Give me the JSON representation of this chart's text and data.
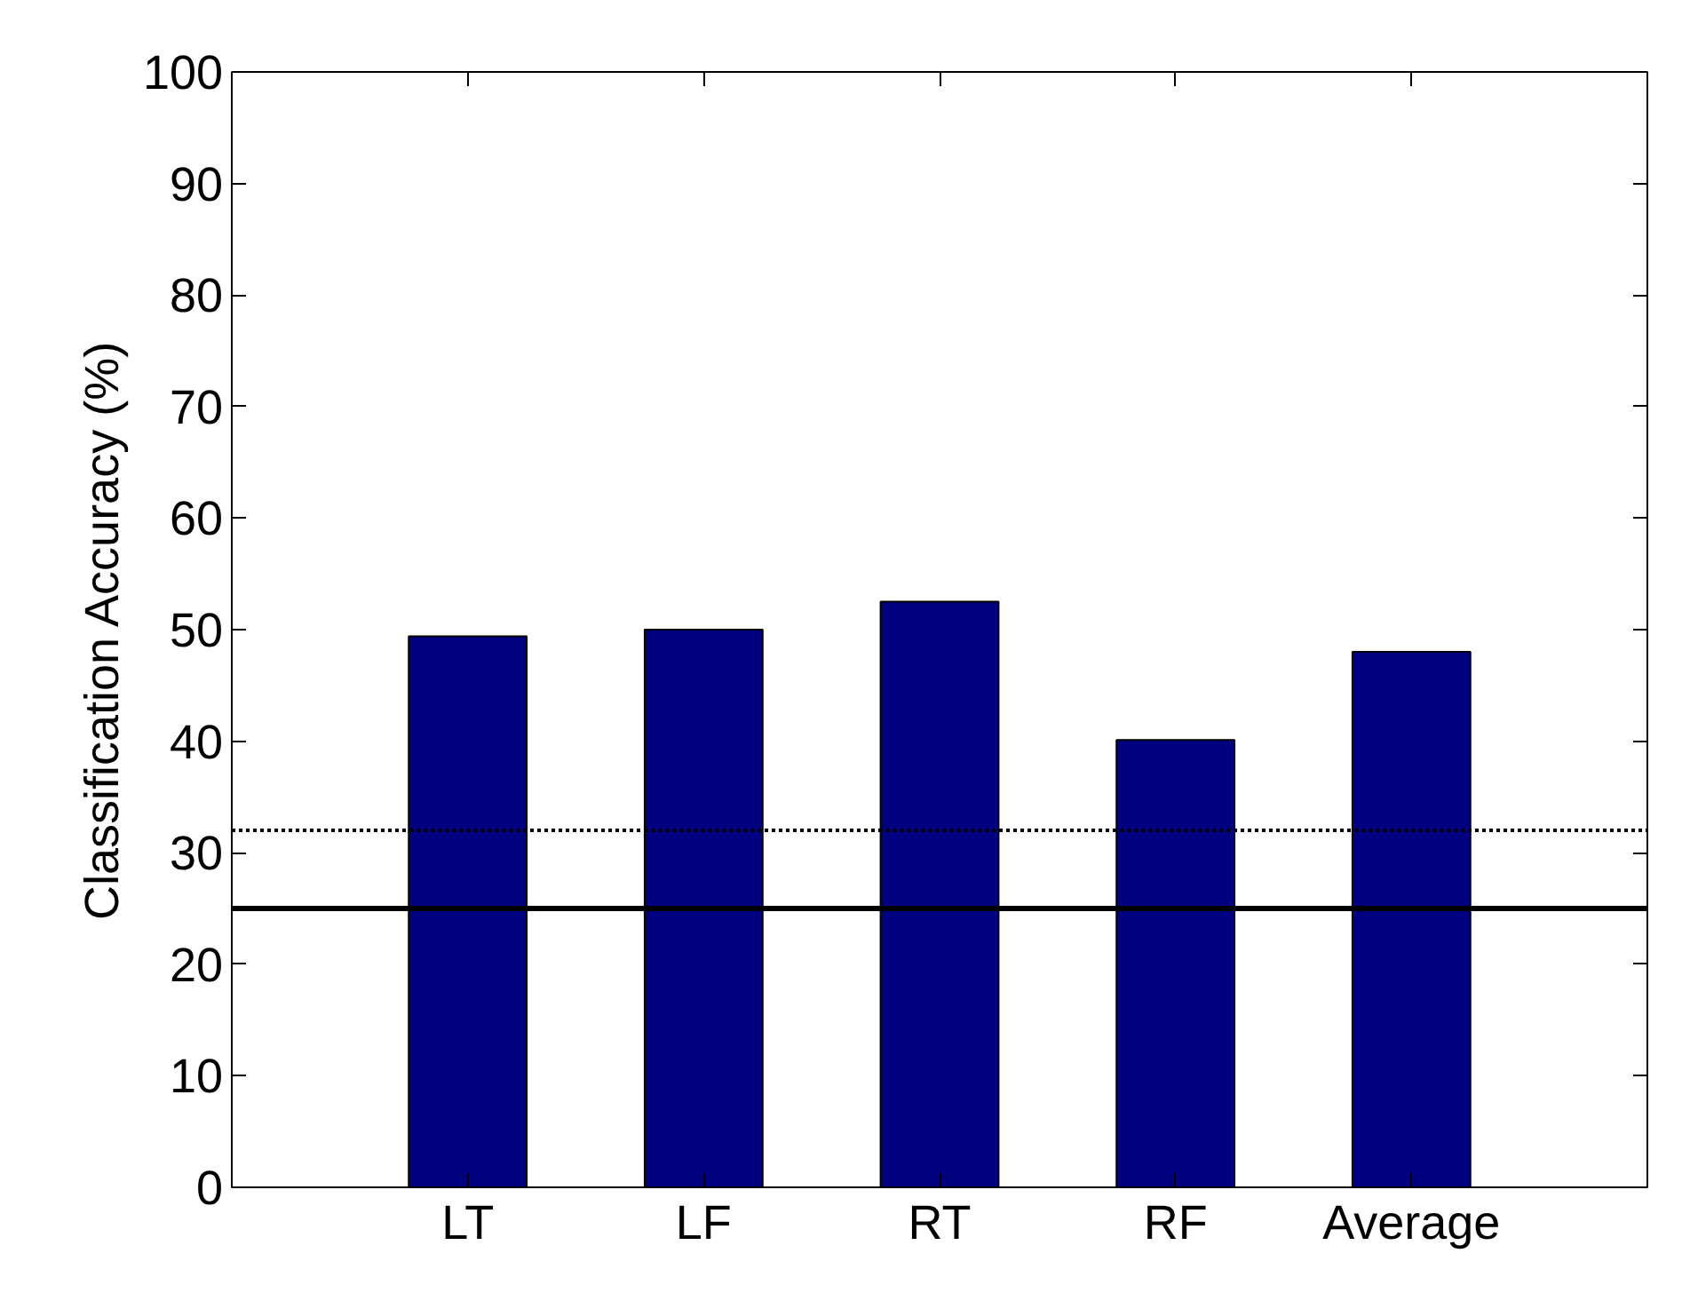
{
  "chart_data": {
    "type": "bar",
    "ylabel": "Classification Accuracy (%)",
    "categories": [
      "LT",
      "LF",
      "RT",
      "RF",
      "Average"
    ],
    "values": [
      49.4,
      50.0,
      52.5,
      40.1,
      48.0
    ],
    "color": "#000080",
    "ylim": [
      0,
      100
    ],
    "yticks": [
      0,
      10,
      20,
      30,
      40,
      50,
      60,
      70,
      80,
      90,
      100
    ],
    "ref_lines": [
      {
        "axis": "y",
        "value": 32,
        "line_style": "dotted",
        "color": "#000000"
      },
      {
        "axis": "y",
        "value": 25,
        "line_style": "solid",
        "color": "#000000"
      }
    ],
    "grid": false
  }
}
